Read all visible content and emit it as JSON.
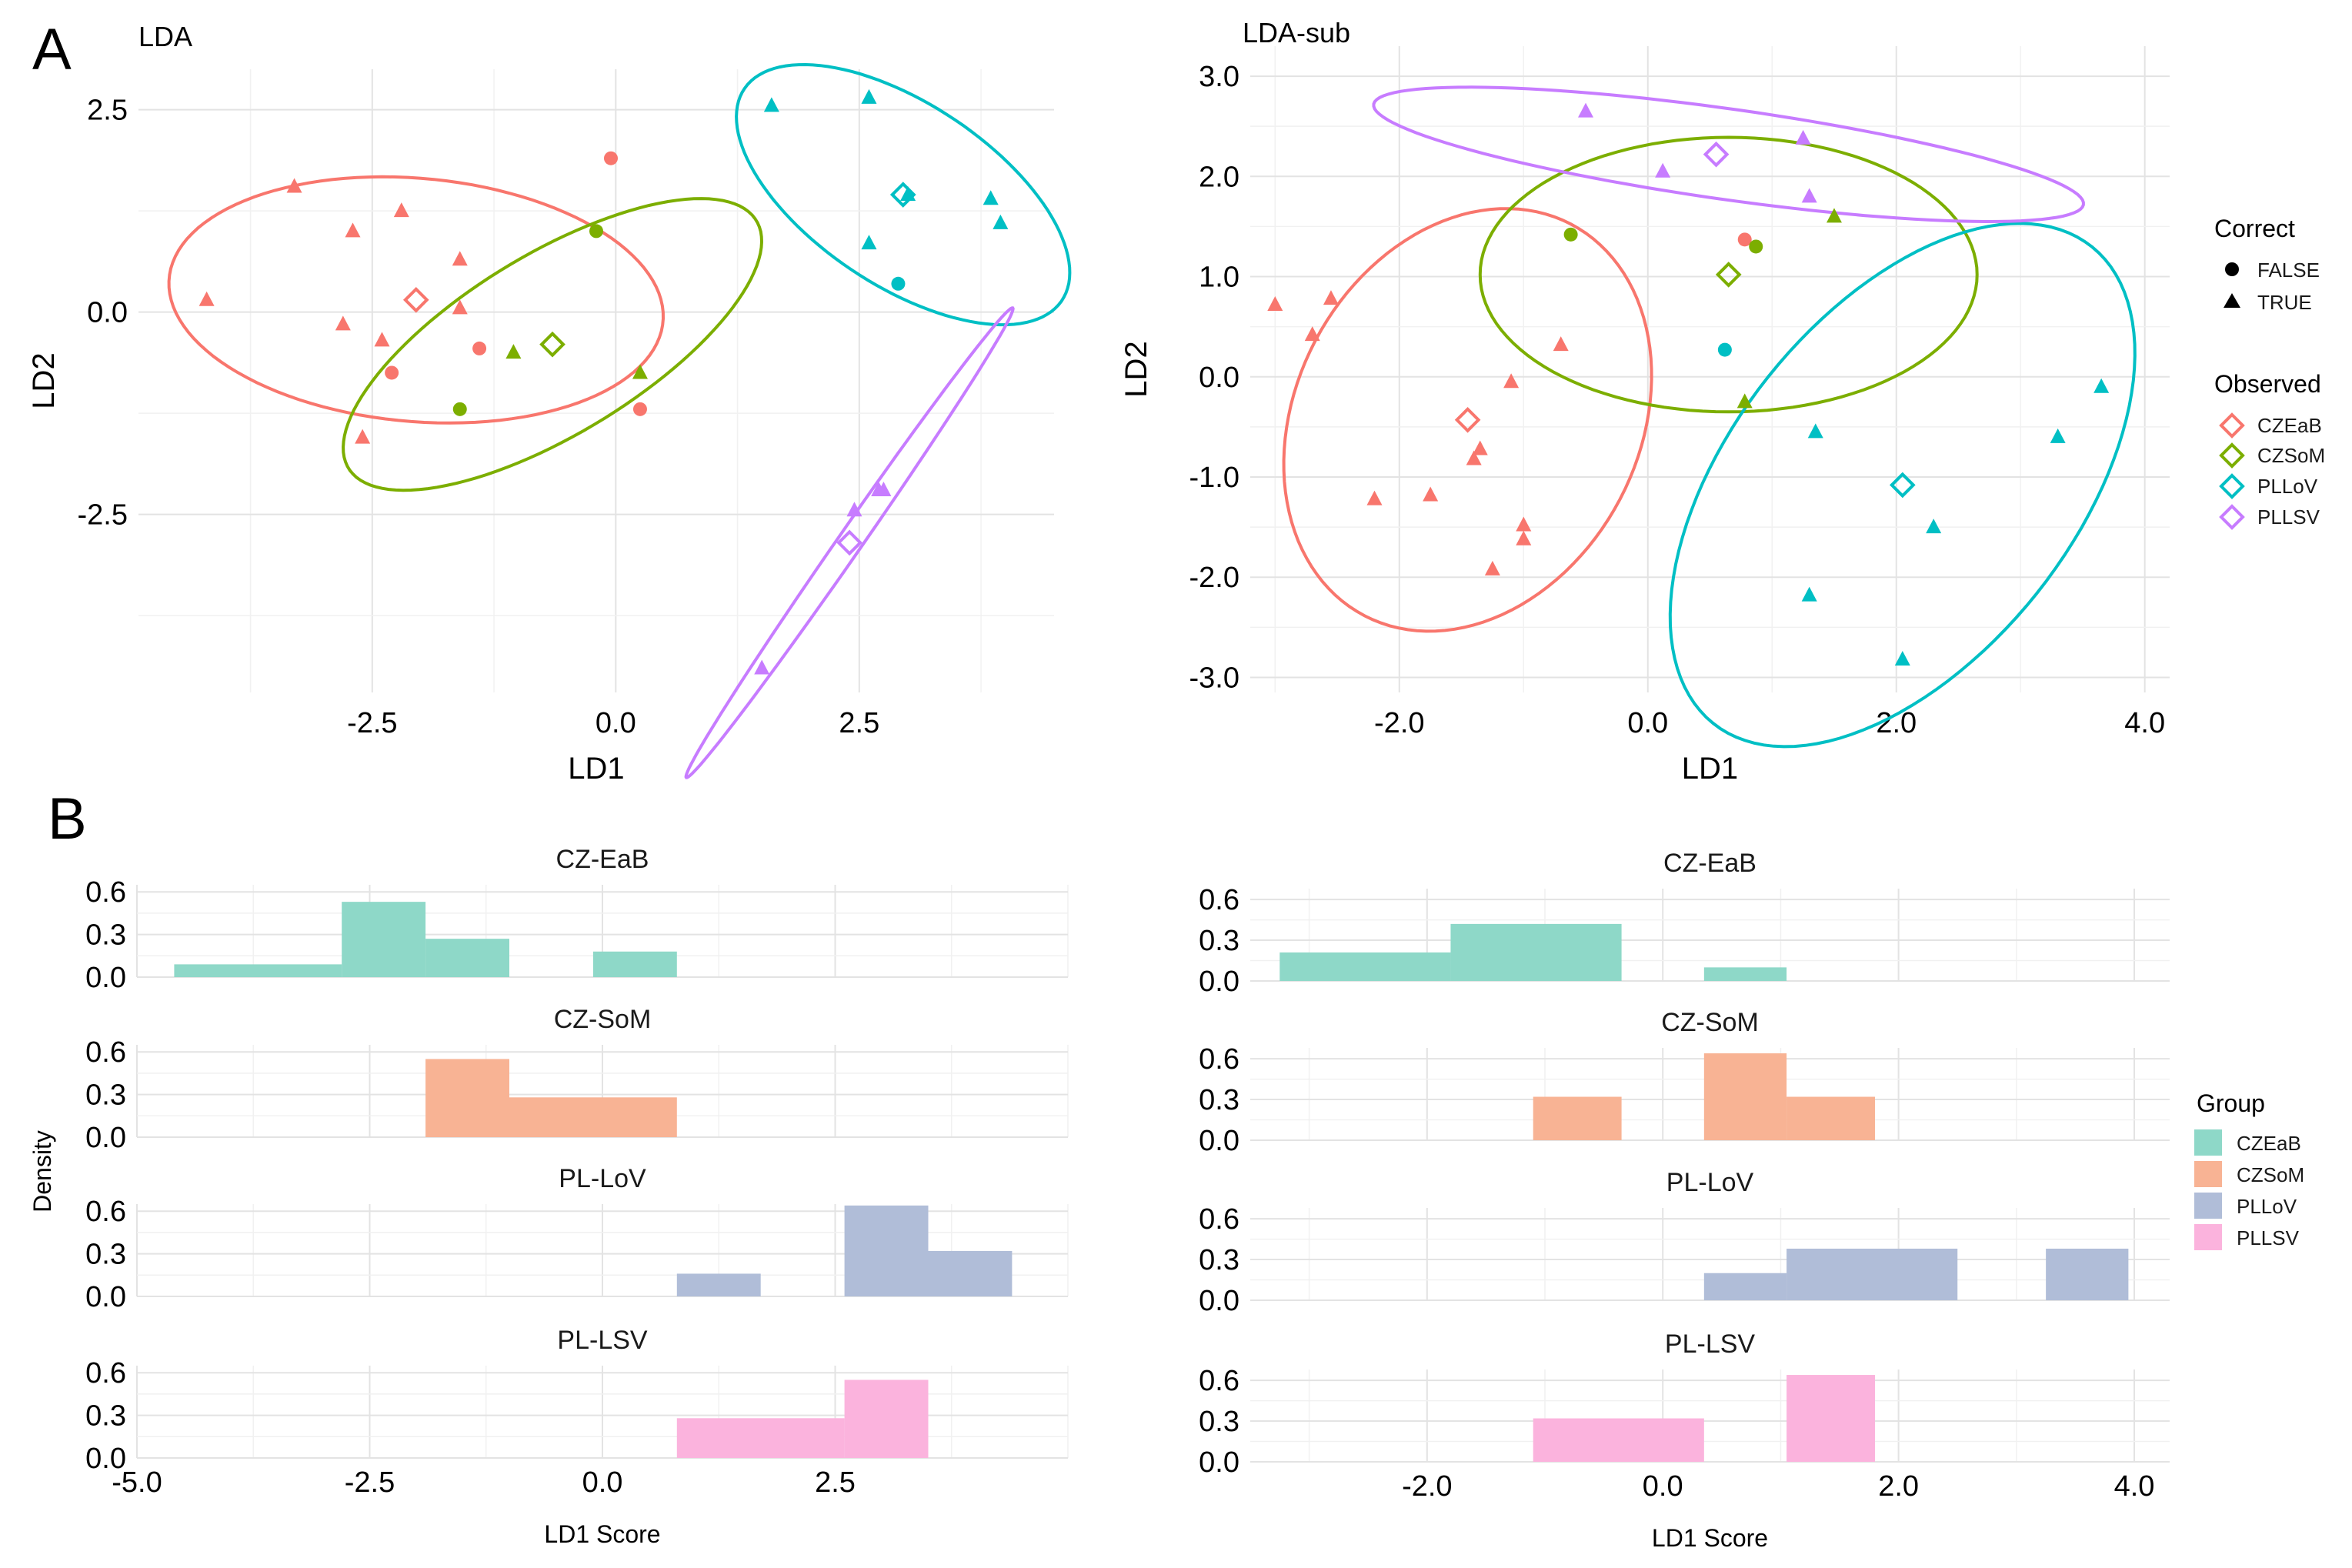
{
  "panel_labels": [
    "A",
    "B"
  ],
  "colors": {
    "CZEaB": "#F8766D",
    "CZSoM": "#7CAE00",
    "PLLoV": "#00BFC4",
    "PLLSV": "#C77CFF"
  },
  "hist_colors": {
    "CZEaB": "#8ED8C8",
    "CZSoM": "#F8B394",
    "PLLoV": "#B0BDD8",
    "PLLSV": "#FBB3DD"
  },
  "legend_A": {
    "correct_title": "Correct",
    "correct_items": [
      {
        "label": "FALSE",
        "shape": "circle"
      },
      {
        "label": "TRUE",
        "shape": "triangle"
      }
    ],
    "observed_title": "Observed",
    "observed_items": [
      {
        "label": "CZEaB",
        "group": "CZEaB"
      },
      {
        "label": "CZSoM",
        "group": "CZSoM"
      },
      {
        "label": "PLLoV",
        "group": "PLLoV"
      },
      {
        "label": "PLLSV",
        "group": "PLLSV"
      }
    ]
  },
  "legend_B": {
    "title": "Group",
    "items": [
      {
        "label": "CZEaB",
        "group": "CZEaB"
      },
      {
        "label": "CZSoM",
        "group": "CZSoM"
      },
      {
        "label": "PLLoV",
        "group": "PLLoV"
      },
      {
        "label": "PLLSV",
        "group": "PLLSV"
      }
    ]
  },
  "chart_data": [
    {
      "id": "lda",
      "type": "scatter",
      "title": "LDA",
      "xlabel": "LD1",
      "ylabel": "LD2",
      "xlim": [
        -4.9,
        4.5
      ],
      "ylim": [
        -4.7,
        3.0
      ],
      "xticks": [
        -2.5,
        0,
        2.5
      ],
      "xtick_labels": [
        "-2.5",
        "0.0",
        "2.5"
      ],
      "yticks": [
        -2.5,
        0,
        2.5
      ],
      "ytick_labels": [
        "-2.5",
        "0.0",
        "2.5"
      ],
      "points": [
        {
          "x": -4.2,
          "y": 0.15,
          "group": "CZEaB",
          "correct": true
        },
        {
          "x": -3.3,
          "y": 1.55,
          "group": "CZEaB",
          "correct": true
        },
        {
          "x": -2.7,
          "y": 1.0,
          "group": "CZEaB",
          "correct": true
        },
        {
          "x": -2.2,
          "y": 1.25,
          "group": "CZEaB",
          "correct": true
        },
        {
          "x": -2.8,
          "y": -0.15,
          "group": "CZEaB",
          "correct": true
        },
        {
          "x": -2.4,
          "y": -0.35,
          "group": "CZEaB",
          "correct": true
        },
        {
          "x": -1.6,
          "y": 0.65,
          "group": "CZEaB",
          "correct": true
        },
        {
          "x": -1.6,
          "y": 0.05,
          "group": "CZEaB",
          "correct": true
        },
        {
          "x": -2.6,
          "y": -1.55,
          "group": "CZEaB",
          "correct": true
        },
        {
          "x": -2.3,
          "y": -0.75,
          "group": "CZEaB",
          "correct": false
        },
        {
          "x": -1.4,
          "y": -0.45,
          "group": "CZEaB",
          "correct": false
        },
        {
          "x": -0.05,
          "y": 1.9,
          "group": "CZEaB",
          "correct": false
        },
        {
          "x": 0.25,
          "y": -1.2,
          "group": "CZEaB",
          "correct": false
        },
        {
          "x": -1.05,
          "y": -0.5,
          "group": "CZSoM",
          "correct": true
        },
        {
          "x": 0.25,
          "y": -0.75,
          "group": "CZSoM",
          "correct": true
        },
        {
          "x": -1.6,
          "y": -1.2,
          "group": "CZSoM",
          "correct": false
        },
        {
          "x": -0.2,
          "y": 1.0,
          "group": "CZSoM",
          "correct": false
        },
        {
          "x": 1.6,
          "y": 2.55,
          "group": "PLLoV",
          "correct": true
        },
        {
          "x": 2.6,
          "y": 2.65,
          "group": "PLLoV",
          "correct": true
        },
        {
          "x": 2.6,
          "y": 0.85,
          "group": "PLLoV",
          "correct": true
        },
        {
          "x": 3.0,
          "y": 1.45,
          "group": "PLLoV",
          "correct": true
        },
        {
          "x": 3.85,
          "y": 1.4,
          "group": "PLLoV",
          "correct": true
        },
        {
          "x": 3.95,
          "y": 1.1,
          "group": "PLLoV",
          "correct": true
        },
        {
          "x": 2.9,
          "y": 0.35,
          "group": "PLLoV",
          "correct": false
        },
        {
          "x": 1.5,
          "y": -4.4,
          "group": "PLLSV",
          "correct": true
        },
        {
          "x": 2.45,
          "y": -2.45,
          "group": "PLLSV",
          "correct": true
        },
        {
          "x": 2.7,
          "y": -2.2,
          "group": "PLLSV",
          "correct": true
        },
        {
          "x": 2.75,
          "y": -2.2,
          "group": "PLLSV",
          "correct": true
        }
      ],
      "centroids": [
        {
          "group": "CZEaB",
          "x": -2.05,
          "y": 0.15
        },
        {
          "group": "CZSoM",
          "x": -0.65,
          "y": -0.4
        },
        {
          "group": "PLLoV",
          "x": 2.95,
          "y": 1.45
        },
        {
          "group": "PLLSV",
          "x": 2.4,
          "y": -2.85
        }
      ],
      "ellipses": [
        {
          "group": "CZEaB",
          "cx": -2.05,
          "cy": 0.15,
          "rx": 2.55,
          "ry": 1.5,
          "angle": -7
        },
        {
          "group": "CZSoM",
          "cx": -0.65,
          "cy": -0.4,
          "rx": 2.6,
          "ry": 1.05,
          "angle": 38
        },
        {
          "group": "PLLoV",
          "cx": 2.95,
          "cy": 1.45,
          "rx": 2.1,
          "ry": 1.05,
          "angle": -42
        },
        {
          "group": "PLLSV",
          "cx": 2.4,
          "cy": -2.85,
          "rx": 3.35,
          "ry": 0.13,
          "angle": 60
        }
      ]
    },
    {
      "id": "lda_sub",
      "type": "scatter",
      "title": "LDA-sub",
      "xlabel": "LD1",
      "ylabel": "LD2",
      "xlim": [
        -3.2,
        4.2
      ],
      "ylim": [
        -3.15,
        3.3
      ],
      "xticks": [
        -2,
        0,
        2,
        4
      ],
      "xtick_labels": [
        "-2.0",
        "0.0",
        "2.0",
        "4.0"
      ],
      "yticks": [
        -3,
        -2,
        -1,
        0,
        1,
        2,
        3
      ],
      "ytick_labels": [
        "-3.0",
        "-2.0",
        "-1.0",
        "0.0",
        "1.0",
        "2.0",
        "3.0"
      ],
      "points": [
        {
          "x": -3.0,
          "y": 0.72,
          "group": "CZEaB",
          "correct": true
        },
        {
          "x": -2.55,
          "y": 0.78,
          "group": "CZEaB",
          "correct": true
        },
        {
          "x": -2.7,
          "y": 0.42,
          "group": "CZEaB",
          "correct": true
        },
        {
          "x": -1.1,
          "y": -0.05,
          "group": "CZEaB",
          "correct": true
        },
        {
          "x": -0.7,
          "y": 0.32,
          "group": "CZEaB",
          "correct": true
        },
        {
          "x": -1.35,
          "y": -0.72,
          "group": "CZEaB",
          "correct": true
        },
        {
          "x": -1.4,
          "y": -0.82,
          "group": "CZEaB",
          "correct": true
        },
        {
          "x": -2.2,
          "y": -1.22,
          "group": "CZEaB",
          "correct": true
        },
        {
          "x": -1.75,
          "y": -1.18,
          "group": "CZEaB",
          "correct": true
        },
        {
          "x": -1.0,
          "y": -1.48,
          "group": "CZEaB",
          "correct": true
        },
        {
          "x": -1.0,
          "y": -1.62,
          "group": "CZEaB",
          "correct": true
        },
        {
          "x": -1.25,
          "y": -1.92,
          "group": "CZEaB",
          "correct": true
        },
        {
          "x": 0.78,
          "y": 1.37,
          "group": "CZEaB",
          "correct": false
        },
        {
          "x": -0.62,
          "y": 1.42,
          "group": "CZSoM",
          "correct": false
        },
        {
          "x": 0.87,
          "y": 1.3,
          "group": "CZSoM",
          "correct": false
        },
        {
          "x": 1.5,
          "y": 1.6,
          "group": "CZSoM",
          "correct": true
        },
        {
          "x": 0.78,
          "y": -0.25,
          "group": "CZSoM",
          "correct": true
        },
        {
          "x": 0.62,
          "y": 0.27,
          "group": "PLLoV",
          "correct": false
        },
        {
          "x": 1.35,
          "y": -0.55,
          "group": "PLLoV",
          "correct": true
        },
        {
          "x": 1.3,
          "y": -2.18,
          "group": "PLLoV",
          "correct": true
        },
        {
          "x": 2.05,
          "y": -2.82,
          "group": "PLLoV",
          "correct": true
        },
        {
          "x": 2.3,
          "y": -1.5,
          "group": "PLLoV",
          "correct": true
        },
        {
          "x": 3.3,
          "y": -0.6,
          "group": "PLLoV",
          "correct": true
        },
        {
          "x": 3.65,
          "y": -0.1,
          "group": "PLLoV",
          "correct": true
        },
        {
          "x": -0.5,
          "y": 2.65,
          "group": "PLLSV",
          "correct": true
        },
        {
          "x": 0.12,
          "y": 2.05,
          "group": "PLLSV",
          "correct": true
        },
        {
          "x": 1.25,
          "y": 2.38,
          "group": "PLLSV",
          "correct": true
        },
        {
          "x": 1.3,
          "y": 1.8,
          "group": "PLLSV",
          "correct": true
        }
      ],
      "centroids": [
        {
          "group": "CZEaB",
          "x": -1.45,
          "y": -0.43
        },
        {
          "group": "CZSoM",
          "x": 0.65,
          "y": 1.02
        },
        {
          "group": "PLLoV",
          "x": 2.05,
          "y": -1.08
        },
        {
          "group": "PLLSV",
          "x": 0.55,
          "y": 2.22
        }
      ],
      "ellipses": [
        {
          "group": "CZEaB",
          "cx": -1.45,
          "cy": -0.43,
          "rx": 2.15,
          "ry": 1.42,
          "angle": -105
        },
        {
          "group": "CZSoM",
          "cx": 0.65,
          "cy": 1.02,
          "rx": 2.0,
          "ry": 1.37,
          "angle": 0
        },
        {
          "group": "PLLoV",
          "cx": 2.05,
          "cy": -1.08,
          "rx": 2.85,
          "ry": 1.48,
          "angle": 62
        },
        {
          "group": "PLLSV",
          "cx": 0.65,
          "cy": 2.22,
          "rx": 2.9,
          "ry": 0.45,
          "angle": -10
        }
      ]
    },
    {
      "id": "hist_full",
      "type": "bar",
      "subtype": "faceted-histogram",
      "xlabel": "LD1 Score",
      "ylabel": "Density",
      "xlim": [
        -5,
        5
      ],
      "xticks": [
        -5,
        -2.5,
        0,
        2.5
      ],
      "xtick_labels": [
        "-5.0",
        "-2.5",
        "0.0",
        "2.5"
      ],
      "ylim": [
        0,
        0.65
      ],
      "yticks": [
        0,
        0.3,
        0.6
      ],
      "ytick_labels": [
        "0.0",
        "0.3",
        "0.6"
      ],
      "facets": [
        {
          "label": "CZ-EaB",
          "group": "CZEaB",
          "bins": [
            {
              "x0": -4.6,
              "x1": -2.8,
              "density": 0.09
            },
            {
              "x0": -2.8,
              "x1": -1.9,
              "density": 0.53
            },
            {
              "x0": -1.9,
              "x1": -1.0,
              "density": 0.27
            },
            {
              "x0": -0.1,
              "x1": 0.8,
              "density": 0.18
            }
          ]
        },
        {
          "label": "CZ-SoM",
          "group": "CZSoM",
          "bins": [
            {
              "x0": -1.9,
              "x1": -1.0,
              "density": 0.55
            },
            {
              "x0": -1.0,
              "x1": 0.8,
              "density": 0.28
            }
          ]
        },
        {
          "label": "PL-LoV",
          "group": "PLLoV",
          "bins": [
            {
              "x0": 0.8,
              "x1": 1.7,
              "density": 0.16
            },
            {
              "x0": 2.6,
              "x1": 3.5,
              "density": 0.64
            },
            {
              "x0": 3.5,
              "x1": 4.4,
              "density": 0.32
            }
          ]
        },
        {
          "label": "PL-LSV",
          "group": "PLLSV",
          "bins": [
            {
              "x0": 0.8,
              "x1": 2.6,
              "density": 0.28
            },
            {
              "x0": 2.6,
              "x1": 3.5,
              "density": 0.55
            }
          ]
        }
      ]
    },
    {
      "id": "hist_sub",
      "type": "bar",
      "subtype": "faceted-histogram",
      "xlabel": "LD1 Score",
      "ylabel": "",
      "xlim": [
        -3.5,
        4.3
      ],
      "xticks": [
        -2,
        0,
        2,
        4
      ],
      "xtick_labels": [
        "-2.0",
        "0.0",
        "2.0",
        "4.0"
      ],
      "ylim": [
        0,
        0.68
      ],
      "yticks": [
        0,
        0.3,
        0.6
      ],
      "ytick_labels": [
        "0.0",
        "0.3",
        "0.6"
      ],
      "facets": [
        {
          "label": "CZ-EaB",
          "group": "CZEaB",
          "bins": [
            {
              "x0": -3.25,
              "x1": -1.8,
              "density": 0.21
            },
            {
              "x0": -1.8,
              "x1": -0.35,
              "density": 0.42
            },
            {
              "x0": 0.35,
              "x1": 1.05,
              "density": 0.1
            }
          ]
        },
        {
          "label": "CZ-SoM",
          "group": "CZSoM",
          "bins": [
            {
              "x0": -1.1,
              "x1": -0.35,
              "density": 0.32
            },
            {
              "x0": 0.35,
              "x1": 1.05,
              "density": 0.64
            },
            {
              "x0": 1.05,
              "x1": 1.8,
              "density": 0.32
            }
          ]
        },
        {
          "label": "PL-LoV",
          "group": "PLLoV",
          "bins": [
            {
              "x0": 0.35,
              "x1": 1.05,
              "density": 0.2
            },
            {
              "x0": 1.05,
              "x1": 2.5,
              "density": 0.38
            },
            {
              "x0": 3.25,
              "x1": 3.95,
              "density": 0.38
            }
          ]
        },
        {
          "label": "PL-LSV",
          "group": "PLLSV",
          "bins": [
            {
              "x0": -1.1,
              "x1": 0.35,
              "density": 0.32
            },
            {
              "x0": 1.05,
              "x1": 1.8,
              "density": 0.64
            }
          ]
        }
      ]
    }
  ]
}
